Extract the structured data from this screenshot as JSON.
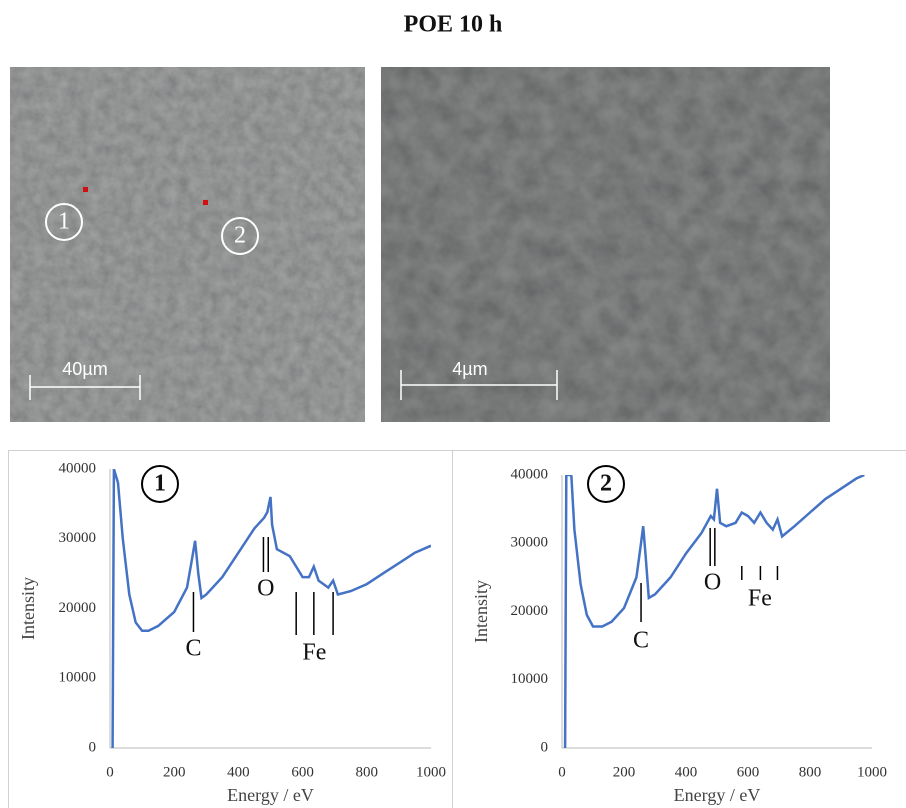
{
  "figure": {
    "title": "POE 10 h",
    "images": [
      {
        "scale_bar": "40µm",
        "markers": [
          "1",
          "2"
        ]
      },
      {
        "scale_bar": "4µm"
      }
    ]
  },
  "chart_data": [
    {
      "type": "line",
      "label": "1",
      "color": "#4472c4",
      "xlabel": "Energy / eV",
      "ylabel": "Intensity",
      "xlim": [
        0,
        1000
      ],
      "ylim": [
        0,
        40000
      ],
      "xticks": [
        0,
        200,
        400,
        600,
        800,
        1000
      ],
      "yticks": [
        0,
        10000,
        20000,
        30000,
        40000
      ],
      "x": [
        8,
        12,
        25,
        40,
        60,
        80,
        100,
        120,
        150,
        200,
        240,
        255,
        265,
        275,
        285,
        300,
        350,
        400,
        450,
        480,
        490,
        500,
        505,
        520,
        560,
        580,
        600,
        620,
        635,
        650,
        680,
        695,
        710,
        750,
        800,
        850,
        900,
        950,
        1000
      ],
      "values": [
        0,
        40000,
        38000,
        30000,
        22000,
        18000,
        16800,
        16800,
        17500,
        19500,
        23000,
        27000,
        29700,
        25000,
        21500,
        22000,
        24500,
        28000,
        31500,
        33000,
        33800,
        36000,
        32000,
        28500,
        27500,
        26000,
        24500,
        24500,
        26000,
        24000,
        23000,
        24000,
        22000,
        22500,
        23500,
        25000,
        26500,
        28000,
        29000
      ],
      "annotations": [
        {
          "text": "C",
          "x": [
            260
          ]
        },
        {
          "text": "O",
          "x": [
            478,
            493
          ]
        },
        {
          "text": "Fe",
          "x": [
            580,
            635,
            695
          ]
        }
      ]
    },
    {
      "type": "line",
      "label": "2",
      "color": "#4472c4",
      "xlabel": "Energy / eV",
      "ylabel": "Intensity",
      "xlim": [
        0,
        1000
      ],
      "ylim": [
        0,
        40000
      ],
      "xticks": [
        0,
        200,
        400,
        600,
        800,
        1000
      ],
      "yticks": [
        0,
        10000,
        20000,
        30000,
        40000
      ],
      "x": [
        10,
        14,
        30,
        40,
        60,
        80,
        100,
        130,
        160,
        200,
        240,
        255,
        262,
        270,
        280,
        300,
        350,
        400,
        450,
        480,
        490,
        500,
        510,
        530,
        560,
        580,
        600,
        620,
        640,
        660,
        680,
        695,
        710,
        750,
        800,
        850,
        900,
        950,
        975
      ],
      "values": [
        0,
        40000,
        40000,
        32000,
        24000,
        19500,
        17800,
        17800,
        18500,
        20500,
        25000,
        30000,
        32500,
        28000,
        22000,
        22500,
        25000,
        28500,
        31500,
        34000,
        33500,
        38000,
        33000,
        32500,
        33000,
        34500,
        34000,
        33000,
        34500,
        33000,
        32000,
        33500,
        31000,
        32500,
        34500,
        36500,
        38000,
        39500,
        40000
      ],
      "annotations": [
        {
          "text": "C",
          "x": [
            255
          ]
        },
        {
          "text": "O",
          "x": [
            478,
            493
          ]
        },
        {
          "text": "Fe",
          "x": [
            580,
            640,
            695
          ]
        }
      ]
    }
  ]
}
